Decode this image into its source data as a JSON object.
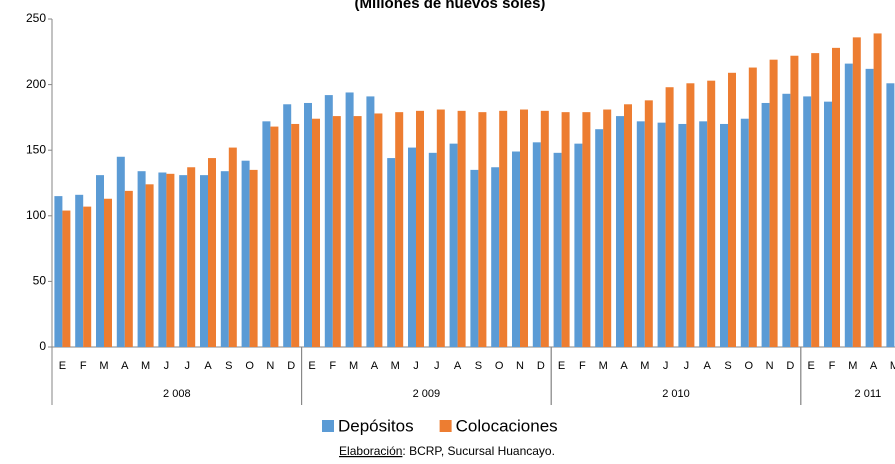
{
  "chart_data": {
    "type": "bar",
    "title": "(Millones de nuevos soles)",
    "categories": [
      "E",
      "F",
      "M",
      "A",
      "M",
      "J",
      "J",
      "A",
      "S",
      "O",
      "N",
      "D",
      "E",
      "F",
      "M",
      "A",
      "M",
      "J",
      "J",
      "A",
      "S",
      "O",
      "N",
      "D",
      "E",
      "F",
      "M",
      "A",
      "M",
      "J",
      "J",
      "A",
      "S",
      "O",
      "N",
      "D",
      "E",
      "F",
      "M",
      "A",
      "M"
    ],
    "groups": [
      "2 008",
      "2 009",
      "2 010",
      "2 011"
    ],
    "series": [
      {
        "name": "Depósitos",
        "color": "#5B9BD5",
        "values": [
          115,
          116,
          131,
          145,
          134,
          133,
          131,
          131,
          134,
          142,
          172,
          185,
          186,
          192,
          194,
          191,
          144,
          152,
          148,
          155,
          135,
          137,
          149,
          156,
          148,
          155,
          166,
          176,
          172,
          171,
          170,
          172,
          170,
          174,
          186,
          193,
          191,
          187,
          216,
          212,
          201
        ]
      },
      {
        "name": "Colocaciones",
        "color": "#ED7D31",
        "values": [
          104,
          107,
          113,
          119,
          124,
          132,
          137,
          144,
          152,
          135,
          168,
          170,
          174,
          176,
          176,
          178,
          179,
          180,
          181,
          180,
          179,
          180,
          181,
          180,
          179,
          179,
          181,
          185,
          188,
          198,
          201,
          203,
          209,
          213,
          219,
          222,
          224,
          228,
          236,
          239,
          null
        ]
      }
    ],
    "ylim": [
      0,
      250
    ],
    "yticks": [
      0,
      50,
      100,
      150,
      200,
      250
    ],
    "legend": "bottom",
    "source": {
      "label": "Elaboración",
      "text": ": BCRP, Sucursal Huancayo."
    }
  }
}
